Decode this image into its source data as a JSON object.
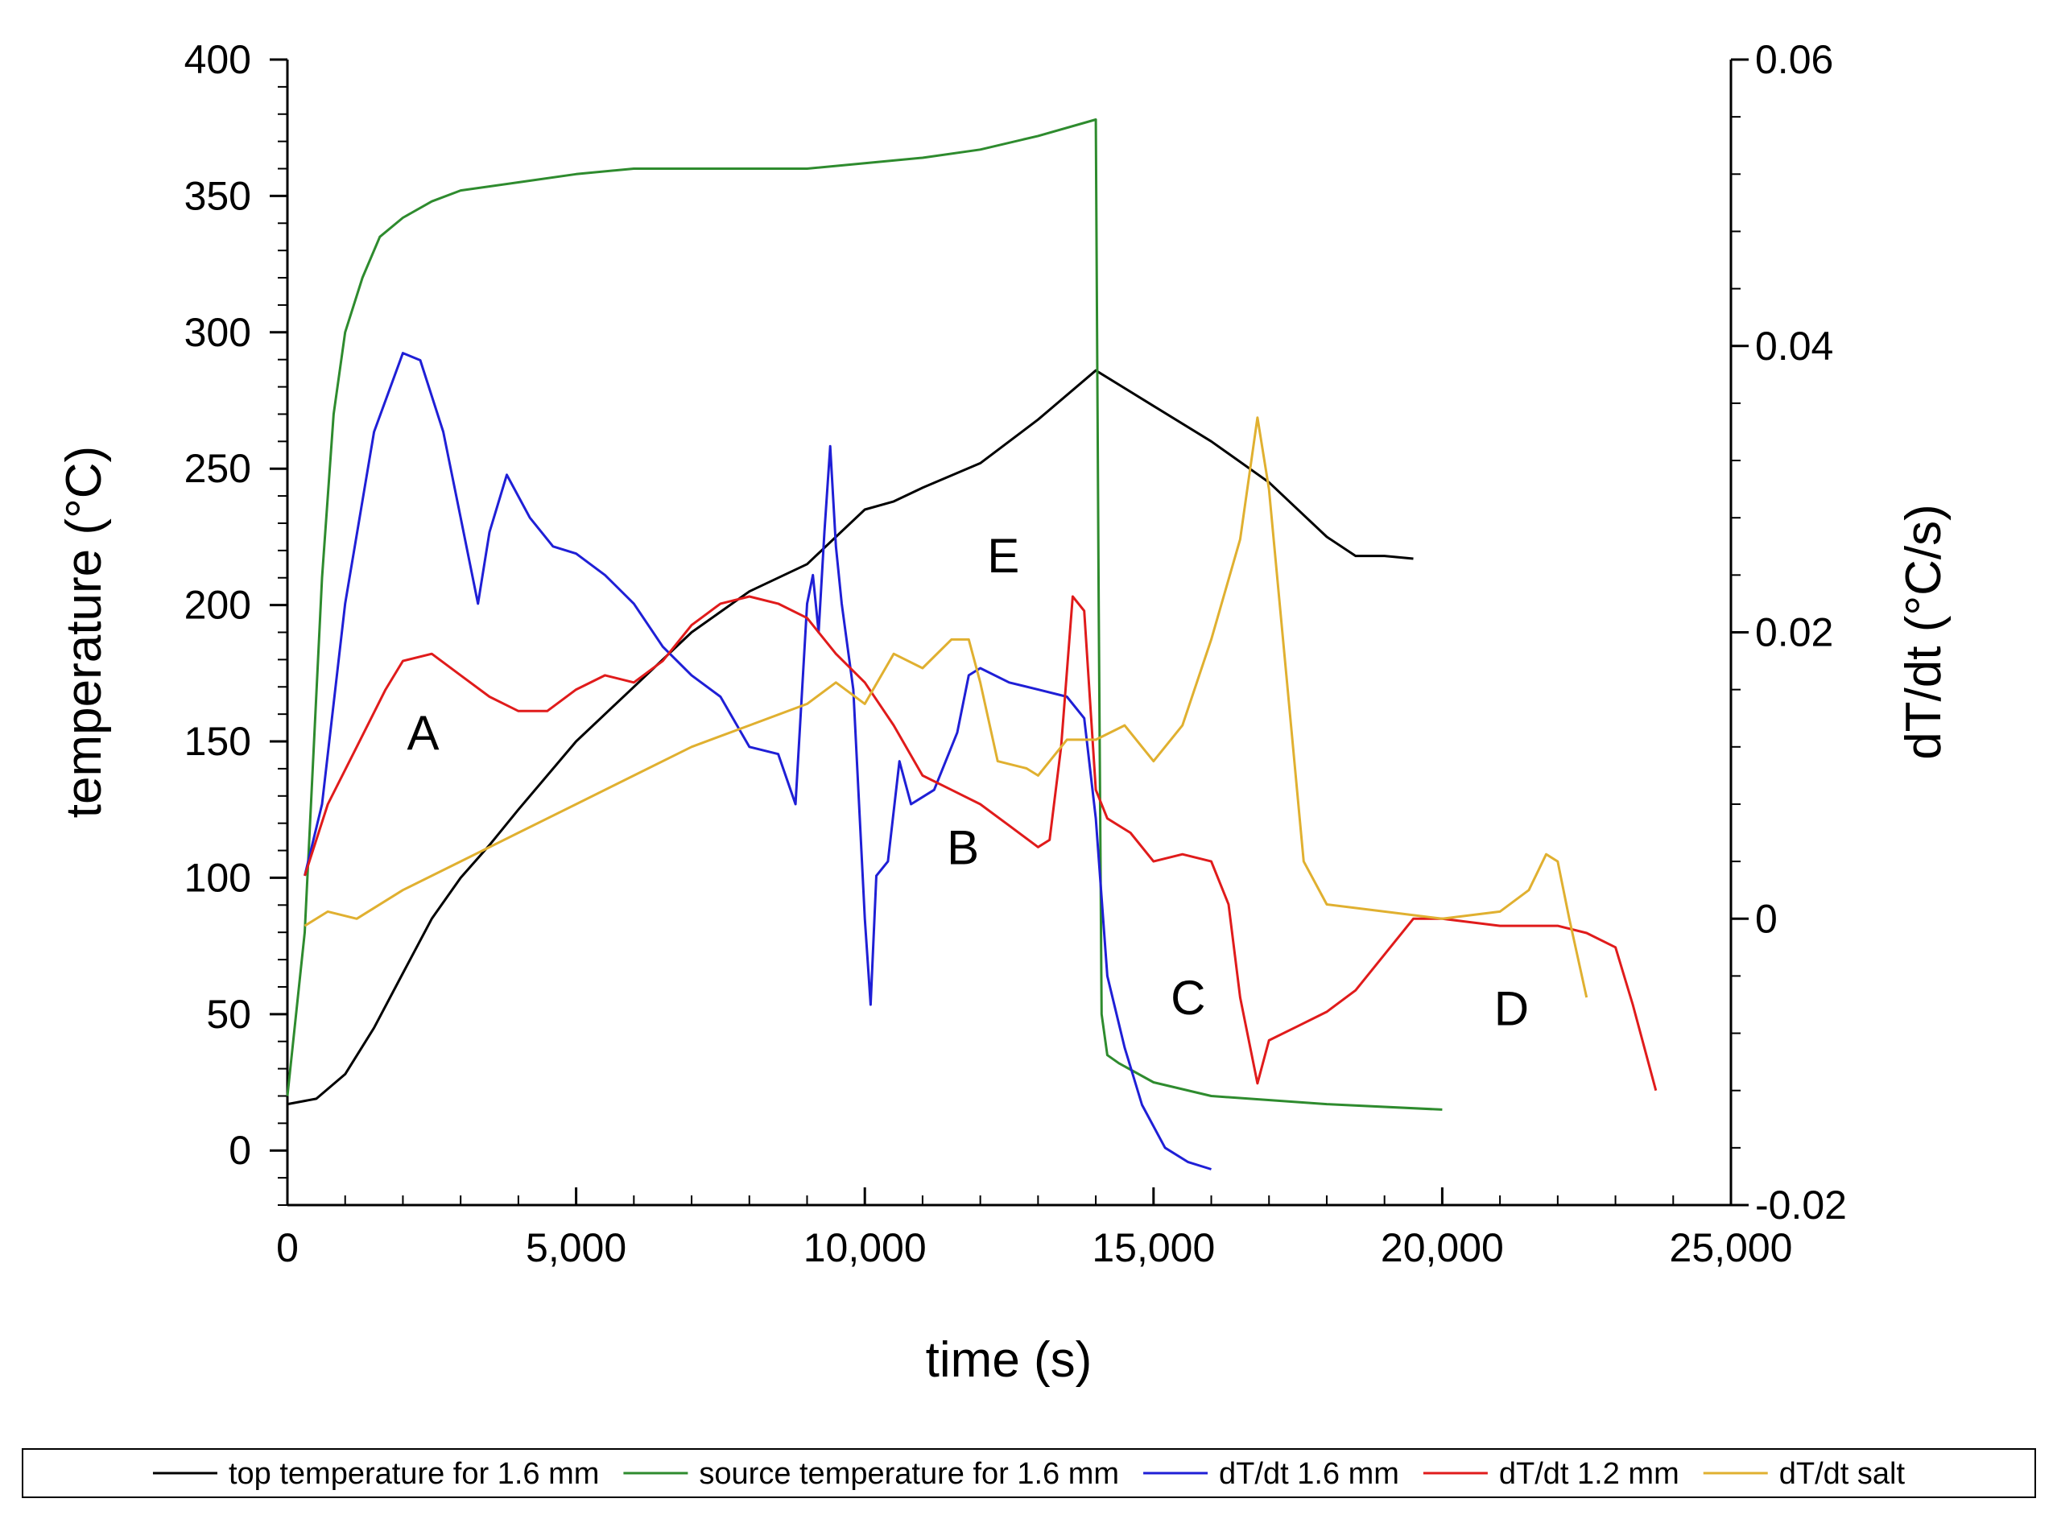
{
  "chart_data": {
    "type": "line",
    "title": "",
    "xlabel": "time (s)",
    "ylabel": "temperature (°C)",
    "y2label": "dT/dt (°C/s)",
    "xlim": [
      0,
      25000
    ],
    "ylim": [
      -20,
      400
    ],
    "y2lim": [
      -0.02,
      0.06
    ],
    "x_ticks": [
      0,
      5000,
      10000,
      15000,
      20000,
      25000
    ],
    "x_tick_labels": [
      "0",
      "5,000",
      "10,000",
      "15,000",
      "20,000",
      "25,000"
    ],
    "y_ticks": [
      0,
      50,
      100,
      150,
      200,
      250,
      300,
      350,
      400
    ],
    "y_tick_labels": [
      "0",
      "50",
      "100",
      "150",
      "200",
      "250",
      "300",
      "350",
      "400"
    ],
    "y2_ticks": [
      -0.02,
      0,
      0.02,
      0.04,
      0.06
    ],
    "y2_tick_labels": [
      "-0.02",
      "0",
      "0.02",
      "0.04",
      "0.06"
    ],
    "legend_position": "bottom",
    "series": [
      {
        "name": "top temperature for 1.6 mm",
        "color": "#000000",
        "axis": "left",
        "x": [
          0,
          500,
          1000,
          1500,
          2000,
          2500,
          3000,
          3500,
          4000,
          5000,
          6000,
          7000,
          8000,
          9000,
          9500,
          10000,
          10500,
          11000,
          12000,
          13000,
          14000,
          15000,
          16000,
          17000,
          18000,
          18500,
          19000,
          19500
        ],
        "y": [
          17,
          19,
          28,
          45,
          65,
          85,
          100,
          112,
          125,
          150,
          170,
          190,
          205,
          215,
          225,
          235,
          238,
          243,
          252,
          268,
          286,
          273,
          260,
          245,
          225,
          218,
          218,
          217
        ]
      },
      {
        "name": "source temperature for 1.6 mm",
        "color": "#2e8b2e",
        "axis": "left",
        "x": [
          0,
          300,
          600,
          800,
          1000,
          1300,
          1600,
          2000,
          2500,
          3000,
          4000,
          5000,
          6000,
          8000,
          9000,
          10000,
          11000,
          12000,
          13000,
          14000,
          14050,
          14100,
          14200,
          14400,
          15000,
          16000,
          18000,
          20000
        ],
        "y": [
          20,
          80,
          210,
          270,
          300,
          320,
          335,
          342,
          348,
          352,
          355,
          358,
          360,
          360,
          360,
          362,
          364,
          367,
          372,
          378,
          200,
          50,
          35,
          32,
          25,
          20,
          17,
          15
        ]
      },
      {
        "name": "dT/dt 1.6 mm",
        "color": "#1f1fd6",
        "axis": "right",
        "x": [
          300,
          600,
          1000,
          1500,
          2000,
          2300,
          2700,
          3000,
          3300,
          3500,
          3800,
          4200,
          4600,
          5000,
          5500,
          6000,
          6500,
          7000,
          7500,
          8000,
          8500,
          8800,
          9000,
          9100,
          9200,
          9300,
          9400,
          9500,
          9600,
          9700,
          9800,
          10000,
          10100,
          10200,
          10400,
          10600,
          10800,
          11200,
          11600,
          11800,
          12000,
          12500,
          13000,
          13500,
          13800,
          14000,
          14200,
          14500,
          14800,
          15200,
          15600,
          16000
        ],
        "y": [
          0.003,
          0.008,
          0.022,
          0.034,
          0.0395,
          0.039,
          0.034,
          0.028,
          0.022,
          0.027,
          0.031,
          0.028,
          0.026,
          0.0255,
          0.024,
          0.022,
          0.019,
          0.017,
          0.0155,
          0.012,
          0.0115,
          0.008,
          0.022,
          0.024,
          0.02,
          0.027,
          0.033,
          0.026,
          0.022,
          0.019,
          0.016,
          0.0,
          -0.006,
          0.003,
          0.004,
          0.011,
          0.008,
          0.009,
          0.013,
          0.017,
          0.0175,
          0.0165,
          0.016,
          0.0155,
          0.014,
          0.007,
          -0.004,
          -0.009,
          -0.013,
          -0.016,
          -0.017,
          -0.0175
        ]
      },
      {
        "name": "dT/dt 1.2 mm",
        "color": "#e01b1b",
        "axis": "right",
        "x": [
          300,
          700,
          1200,
          1700,
          2000,
          2500,
          3000,
          3500,
          4000,
          4500,
          5000,
          5500,
          6000,
          6500,
          7000,
          7500,
          8000,
          8500,
          9000,
          9500,
          10000,
          10500,
          11000,
          11500,
          12000,
          12500,
          13000,
          13200,
          13400,
          13600,
          13800,
          14000,
          14200,
          14600,
          15000,
          15500,
          16000,
          16300,
          16500,
          16800,
          17000,
          17500,
          18000,
          18500,
          19000,
          19500,
          20000,
          21000,
          22000,
          22500,
          23000,
          23300,
          23700
        ],
        "y": [
          0.003,
          0.008,
          0.012,
          0.016,
          0.018,
          0.0185,
          0.017,
          0.0155,
          0.0145,
          0.0145,
          0.016,
          0.017,
          0.0165,
          0.018,
          0.0205,
          0.022,
          0.0225,
          0.022,
          0.021,
          0.0185,
          0.0165,
          0.0135,
          0.01,
          0.009,
          0.008,
          0.0065,
          0.005,
          0.0055,
          0.012,
          0.0225,
          0.0215,
          0.009,
          0.007,
          0.006,
          0.004,
          0.0045,
          0.004,
          0.001,
          -0.0055,
          -0.0115,
          -0.0085,
          -0.0075,
          -0.0065,
          -0.005,
          -0.0025,
          0.0,
          0.0,
          -0.0005,
          -0.0005,
          -0.001,
          -0.002,
          -0.006,
          -0.012
        ]
      },
      {
        "name": "dT/dt salt",
        "color": "#e0b030",
        "axis": "right",
        "x": [
          300,
          700,
          1200,
          2000,
          3000,
          4000,
          5000,
          6000,
          7000,
          8000,
          9000,
          9500,
          10000,
          10500,
          11000,
          11500,
          11800,
          12000,
          12300,
          12800,
          13000,
          13500,
          14000,
          14500,
          15000,
          15500,
          16000,
          16500,
          16800,
          17000,
          17300,
          17600,
          18000,
          19000,
          20000,
          21000,
          21500,
          21800,
          22000,
          22200,
          22500
        ],
        "y": [
          -0.0005,
          0.0005,
          0.0,
          0.002,
          0.004,
          0.006,
          0.008,
          0.01,
          0.012,
          0.0135,
          0.015,
          0.0165,
          0.015,
          0.0185,
          0.0175,
          0.0195,
          0.0195,
          0.0165,
          0.011,
          0.0105,
          0.01,
          0.0125,
          0.0125,
          0.0135,
          0.011,
          0.0135,
          0.0195,
          0.0265,
          0.035,
          0.03,
          0.017,
          0.004,
          0.001,
          0.0005,
          0.0,
          0.0005,
          0.002,
          0.0045,
          0.004,
          0.0,
          -0.0055
        ]
      }
    ],
    "annotations": [
      {
        "text": "A",
        "x": 2350,
        "y": 147
      },
      {
        "text": "B",
        "x": 11700,
        "y": 105
      },
      {
        "text": "C",
        "x": 15600,
        "y": 50
      },
      {
        "text": "D",
        "x": 21200,
        "y": 46
      },
      {
        "text": "E",
        "x": 12400,
        "y": 212
      }
    ]
  }
}
